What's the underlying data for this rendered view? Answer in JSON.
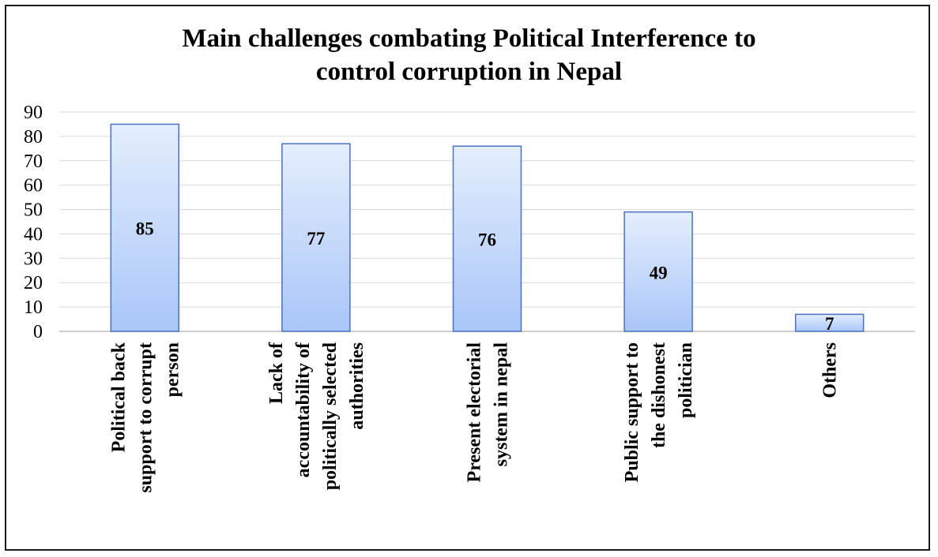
{
  "chart_data": {
    "type": "bar",
    "title_lines": [
      "Main challenges combating Political Interference to",
      "control corruption  in Nepal"
    ],
    "xlabel": "",
    "ylabel": "",
    "categories": [
      [
        "Political back",
        "support to corrupt",
        "person"
      ],
      [
        "Lack of",
        "accountability of",
        "politically selected",
        "authorities"
      ],
      [
        "Present electorial",
        "system in nepal"
      ],
      [
        "Public support to",
        "the dishonest",
        "politician"
      ],
      [
        "Others"
      ]
    ],
    "values": [
      85,
      77,
      76,
      49,
      7
    ],
    "data_labels": [
      "85",
      "77",
      "76",
      "49",
      "7"
    ],
    "ylim": [
      0,
      90
    ],
    "yticks": [
      "0",
      "10",
      "20",
      "30",
      "40",
      "50",
      "60",
      "70",
      "80",
      "90"
    ],
    "grid": true,
    "legend": "none",
    "colors": {
      "bar_top": "#e4eefd",
      "bar_bottom": "#a9c6f8",
      "bar_border": "#4a72c0",
      "grid": "#d9d9d9",
      "axis": "#bfbfbf"
    }
  }
}
